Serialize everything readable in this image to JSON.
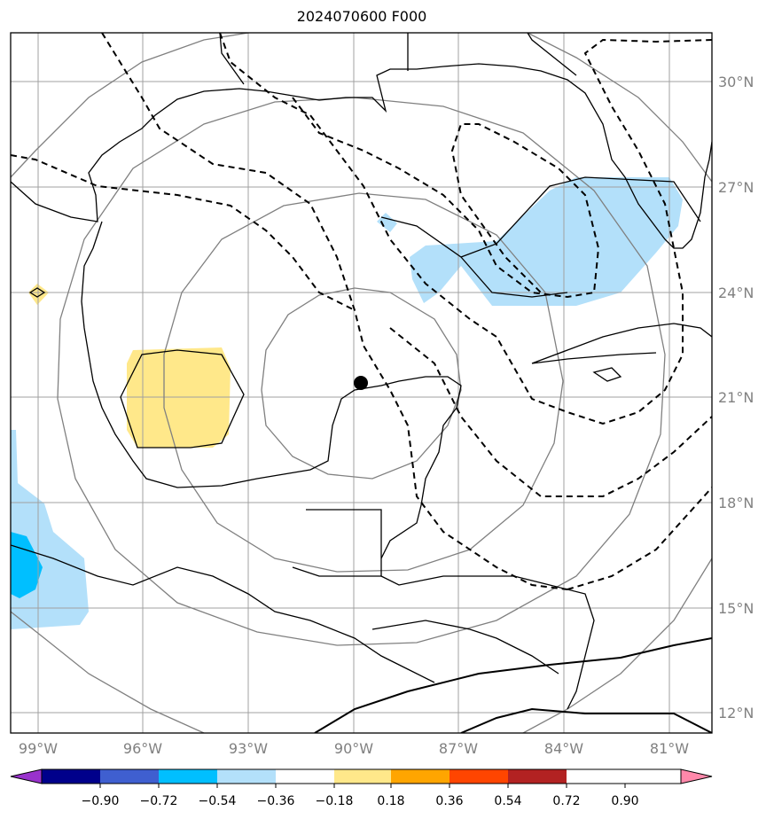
{
  "map": {
    "title": "2024070600 F000",
    "lon_labels": [
      "99°W",
      "96°W",
      "93°W",
      "90°W",
      "87°W",
      "84°W",
      "81°W"
    ],
    "lat_labels": [
      "30°N",
      "27°N",
      "24°N",
      "21°N",
      "18°N",
      "15°N",
      "12°N"
    ],
    "center_marker": {
      "lon": -89.8,
      "lat": 21.4
    },
    "colors": {
      "grid": "#a0a0a0",
      "range_rings": "#808080",
      "coastline": "#000000",
      "light_blue": "#b3e0fa",
      "sky_blue": "#00bfff",
      "yellow": "#ffe88a"
    }
  },
  "colorbar": {
    "tick_labels": [
      "−0.90",
      "−0.72",
      "−0.54",
      "−0.36",
      "−0.18",
      "0.18",
      "0.36",
      "0.54",
      "0.72",
      "0.90"
    ],
    "colors": [
      "#9932cc",
      "#00008b",
      "#3f5fd0",
      "#00bfff",
      "#b3e0fa",
      "#ffffff",
      "#ffe88a",
      "#ffa500",
      "#ff4500",
      "#b22222",
      "#ff88aa"
    ]
  }
}
